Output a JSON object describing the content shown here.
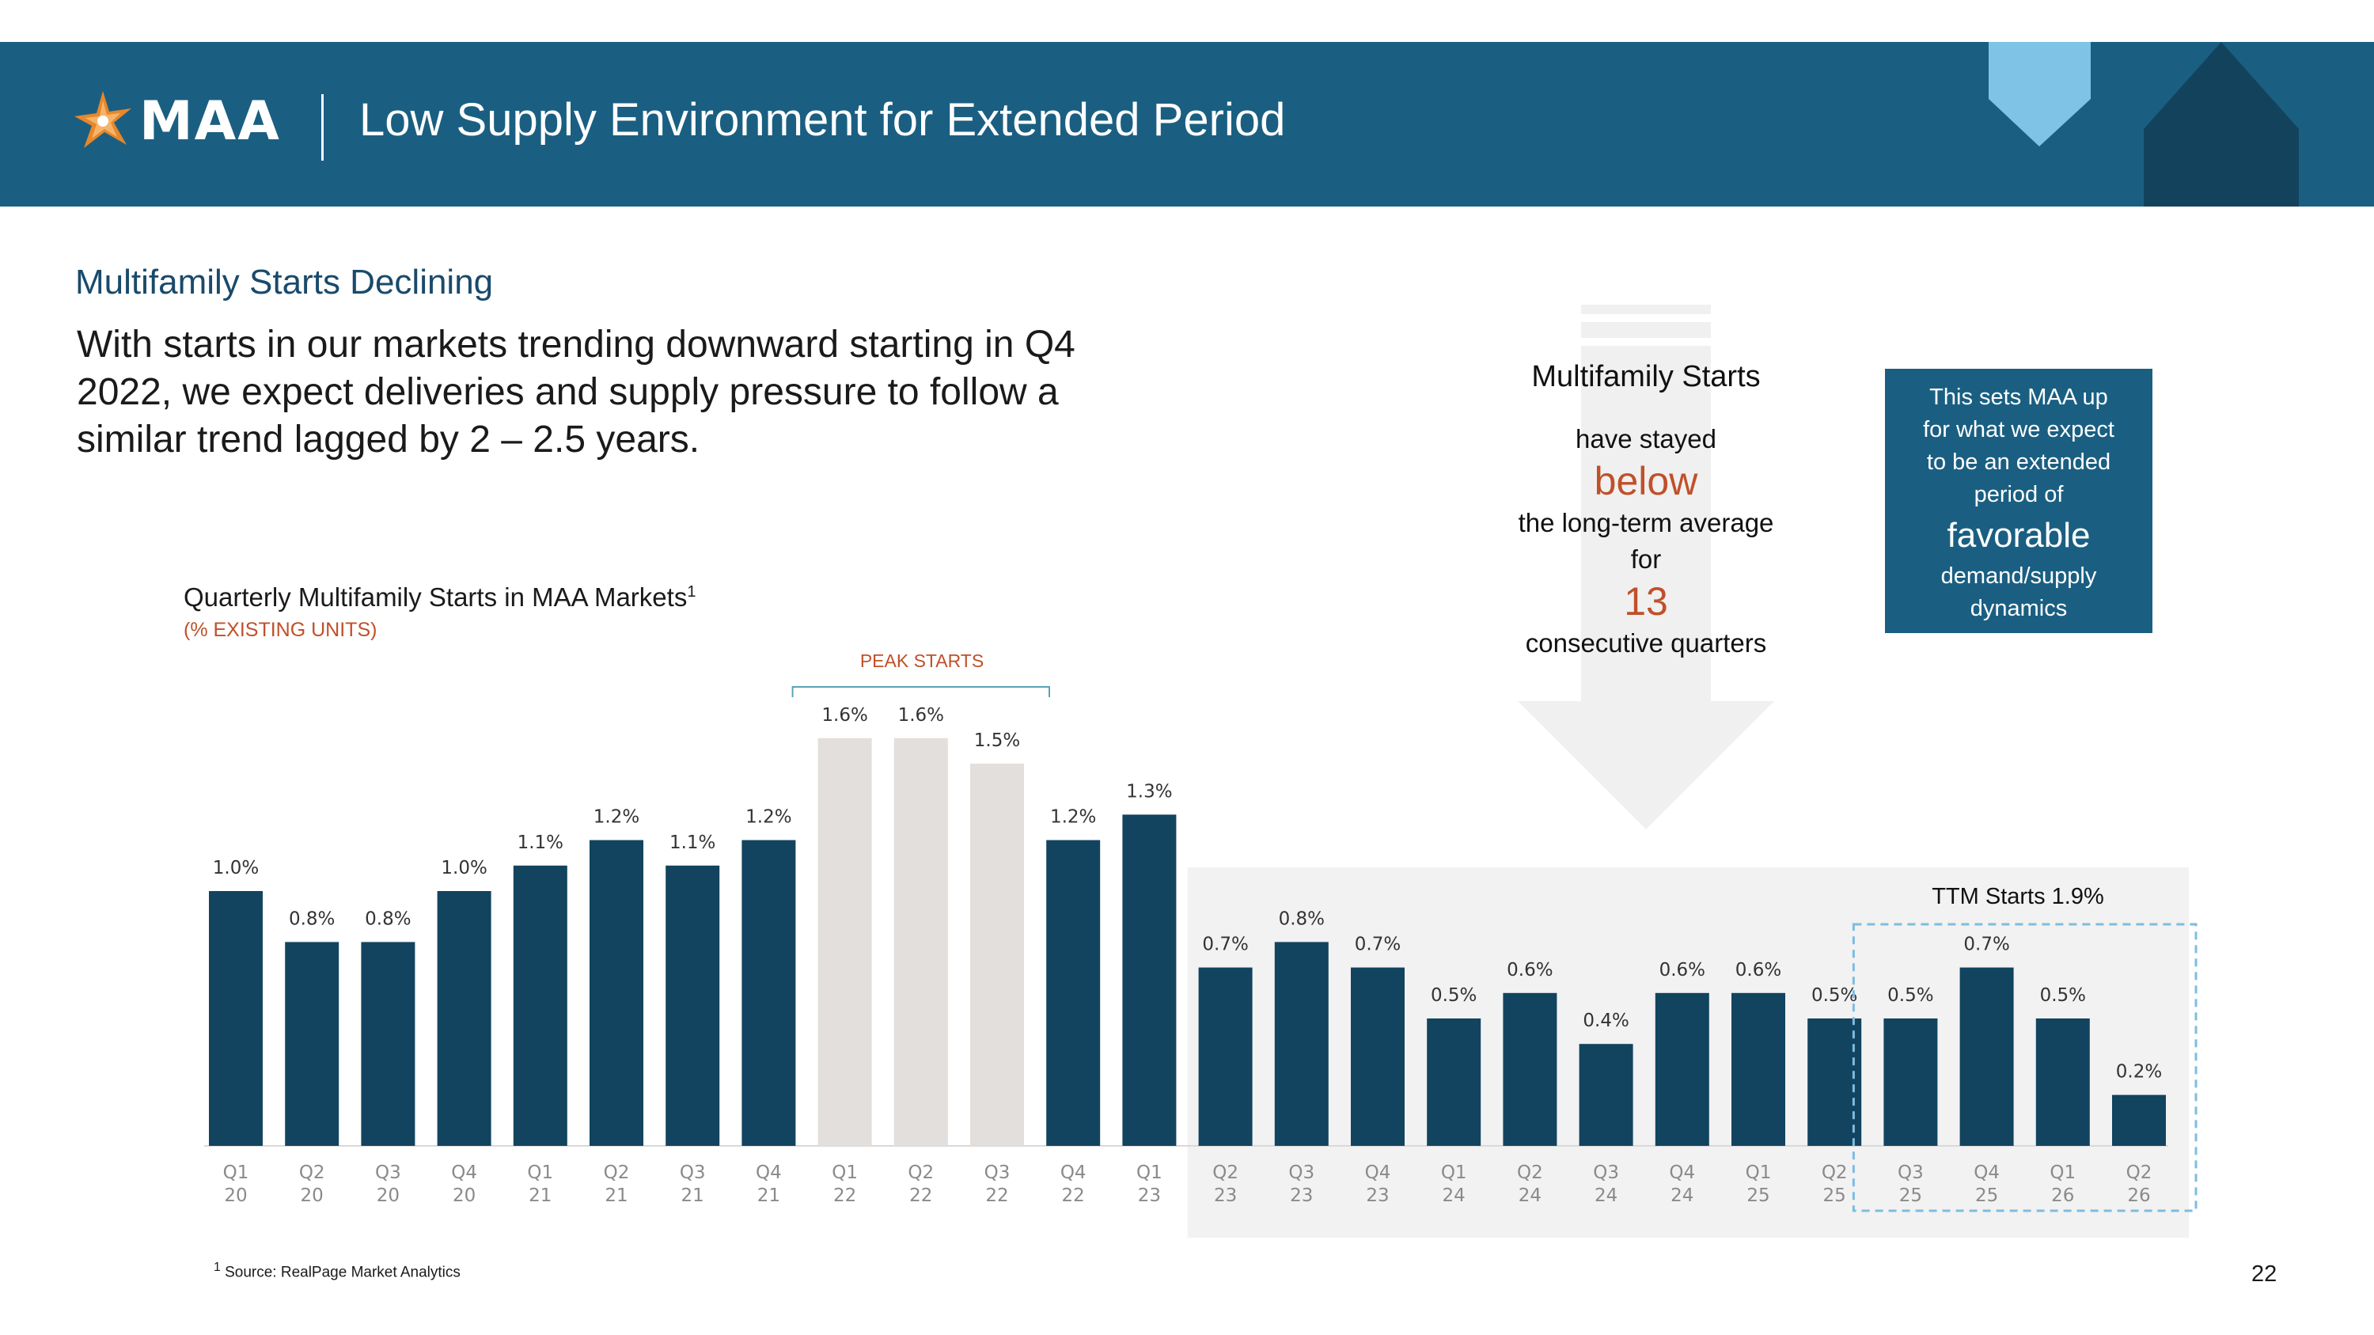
{
  "header": {
    "logo_text": "MAA",
    "title": "Low Supply Environment for Extended Period"
  },
  "section": {
    "subtitle": "Multifamily Starts Declining",
    "intro": "With starts in our markets trending downward starting in Q4 2022, we expect deliveries and supply pressure to follow a similar trend lagged by 2 – 2.5 years."
  },
  "chart_labels": {
    "title": "Quarterly Multifamily Starts in MAA Markets",
    "title_sup": "1",
    "subtitle": "(% EXISTING UNITS)",
    "peak_label": "PEAK STARTS",
    "ttm_label": "TTM Starts 1.9%"
  },
  "chart_data": {
    "type": "bar",
    "title": "Quarterly Multifamily Starts in MAA Markets",
    "ylabel": "(% EXISTING UNITS)",
    "ylim": [
      0,
      1.6
    ],
    "categories": [
      "Q1 20",
      "Q2 20",
      "Q3 20",
      "Q4 20",
      "Q1 21",
      "Q2 21",
      "Q3 21",
      "Q4 21",
      "Q1 22",
      "Q2 22",
      "Q3 22",
      "Q4 22",
      "Q1 23",
      "Q2 23",
      "Q3 23",
      "Q4 23",
      "Q1 24",
      "Q2 24",
      "Q3 24",
      "Q4 24",
      "Q1 25",
      "Q2 25",
      "Q3 25",
      "Q4 25",
      "Q1 26",
      "Q2 26"
    ],
    "values": [
      1.0,
      0.8,
      0.8,
      1.0,
      1.1,
      1.2,
      1.1,
      1.2,
      1.6,
      1.6,
      1.5,
      1.2,
      1.3,
      0.7,
      0.8,
      0.7,
      0.5,
      0.6,
      0.4,
      0.6,
      0.6,
      0.5,
      0.5,
      0.7,
      0.5,
      0.2
    ],
    "value_labels": [
      "1.0%",
      "0.8%",
      "0.8%",
      "1.0%",
      "1.1%",
      "1.2%",
      "1.1%",
      "1.2%",
      "1.6%",
      "1.6%",
      "1.5%",
      "1.2%",
      "1.3%",
      "0.7%",
      "0.8%",
      "0.7%",
      "0.5%",
      "0.6%",
      "0.4%",
      "0.6%",
      "0.6%",
      "0.5%",
      "0.5%",
      "0.7%",
      "0.5%",
      "0.2%"
    ],
    "tick_top": [
      "Q1",
      "Q2",
      "Q3",
      "Q4",
      "Q1",
      "Q2",
      "Q3",
      "Q4",
      "Q1",
      "Q2",
      "Q3",
      "Q4",
      "Q1",
      "Q2",
      "Q3",
      "Q4",
      "Q1",
      "Q2",
      "Q3",
      "Q4",
      "Q1",
      "Q2",
      "Q3",
      "Q4",
      "Q1",
      "Q2"
    ],
    "tick_bottom": [
      "20",
      "20",
      "20",
      "20",
      "21",
      "21",
      "21",
      "21",
      "22",
      "22",
      "22",
      "22",
      "23",
      "23",
      "23",
      "23",
      "24",
      "24",
      "24",
      "24",
      "25",
      "25",
      "25",
      "25",
      "26",
      "26"
    ],
    "peak_indices": [
      8,
      9,
      10
    ],
    "below_average_start_index": 13,
    "ttm_indices": [
      22,
      23,
      24,
      25
    ],
    "colors": {
      "bar": "#12445f",
      "peak_bar": "#e2dfdc",
      "shaded_region": "#f2f2f2",
      "ttm_box": "#7fbce0",
      "peak_bracket": "#5aa3b8"
    }
  },
  "multifamily_starts": {
    "heading": "Multifamily Starts",
    "line1": "have stayed",
    "emph1": "below",
    "line2": "the long-term average",
    "line3": "for",
    "emph2": "13",
    "line4": "consecutive quarters"
  },
  "callout": {
    "line1": "This sets MAA up",
    "line2": "for what we expect",
    "line3": "to be an extended",
    "line4": "period of",
    "emph": "favorable",
    "line5": "demand/supply",
    "line6": "dynamics"
  },
  "footnote": {
    "sup": "1",
    "text": "Source: RealPage Market Analytics"
  },
  "page_number": "22",
  "colors": {
    "header_bg": "#1a5f82",
    "accent_orange": "#c0502a",
    "logo_orange": "#e8872a"
  }
}
